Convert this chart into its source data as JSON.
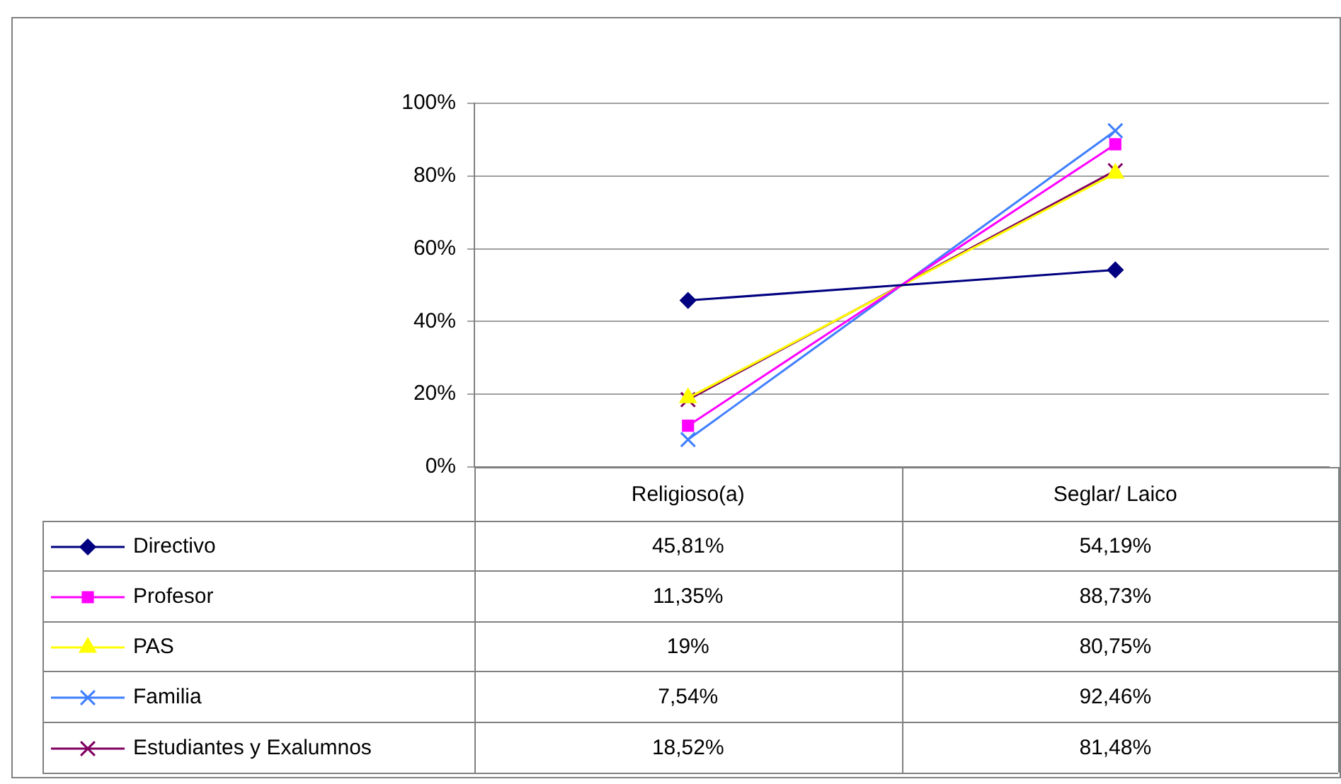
{
  "chart_data": {
    "type": "line",
    "categories": [
      "Religioso(a)",
      "Seglar/ Laico"
    ],
    "series": [
      {
        "name": "Directivo",
        "color": "#000080",
        "marker": "diamond",
        "values": [
          45.81,
          54.19
        ],
        "value_labels": [
          "45,81%",
          "54,19%"
        ]
      },
      {
        "name": "Profesor",
        "color": "#ff00ff",
        "marker": "square",
        "values": [
          11.35,
          88.73
        ],
        "value_labels": [
          "11,35%",
          "88,73%"
        ]
      },
      {
        "name": "PAS",
        "color": "#ffff00",
        "marker": "triangle",
        "values": [
          19,
          80.75
        ],
        "value_labels": [
          "19%",
          "80,75%"
        ]
      },
      {
        "name": "Familia",
        "color": "#3f7fff",
        "marker": "cross",
        "values": [
          7.54,
          92.46
        ],
        "value_labels": [
          "7,54%",
          "92,46%"
        ]
      },
      {
        "name": "Estudiantes y Exalumnos",
        "color": "#800060",
        "marker": "cross",
        "values": [
          18.52,
          81.48
        ],
        "value_labels": [
          "18,52%",
          "81,48%"
        ]
      }
    ],
    "ylim": [
      0,
      100
    ],
    "yticks": [
      {
        "value": 0,
        "label": "0%"
      },
      {
        "value": 20,
        "label": "20%"
      },
      {
        "value": 40,
        "label": "40%"
      },
      {
        "value": 60,
        "label": "60%"
      },
      {
        "value": 80,
        "label": "80%"
      },
      {
        "value": 100,
        "label": "100%"
      }
    ],
    "grid": "y",
    "legend": "bottom"
  }
}
